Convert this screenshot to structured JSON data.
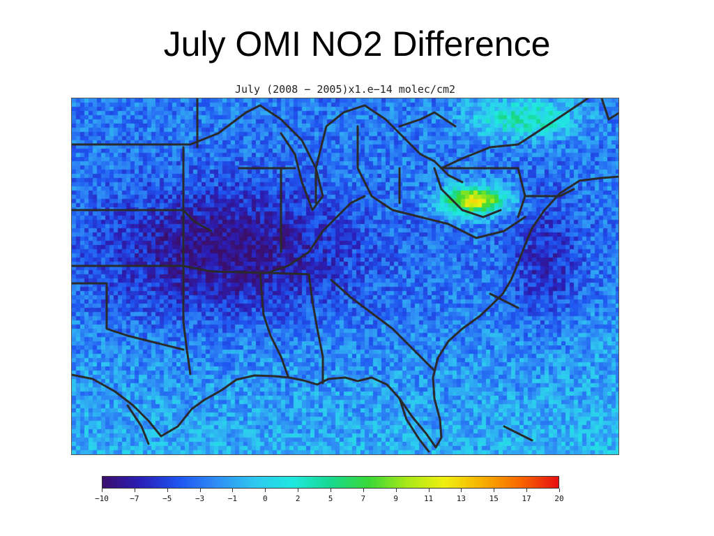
{
  "slide": {
    "title": "July OMI NO2 Difference"
  },
  "map": {
    "caption": "July (2008 − 2005)x1.e−14 molec/cm2",
    "region": "Eastern United States",
    "boundary_color": "#2a2a2a"
  },
  "colorbar": {
    "ticks": [
      "−10",
      "−7",
      "−5",
      "−3",
      "−1",
      "0",
      "2",
      "5",
      "7",
      "9",
      "11",
      "13",
      "15",
      "17",
      "20"
    ],
    "stops": [
      "#3b0f6e",
      "#2a1fb8",
      "#1f55f0",
      "#2f8df5",
      "#2ec8f0",
      "#20e8e0",
      "#18d890",
      "#38d838",
      "#a8e818",
      "#f0f010",
      "#f8b000",
      "#f86800",
      "#e81010"
    ]
  }
}
